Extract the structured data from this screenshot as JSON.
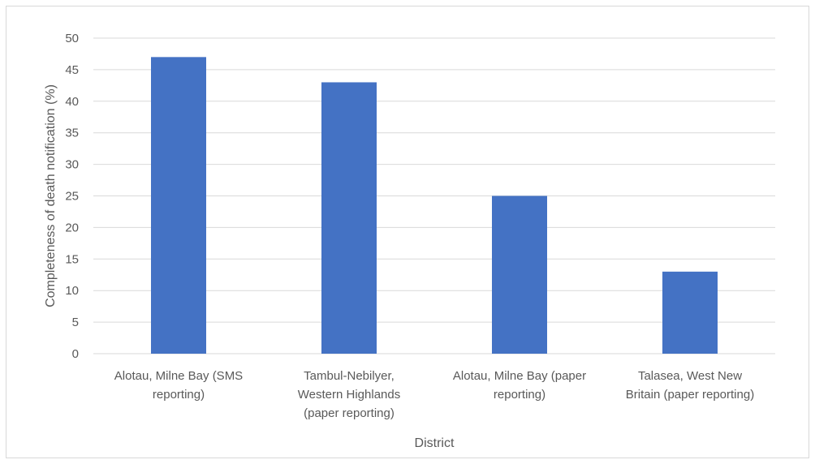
{
  "chart_data": {
    "type": "bar",
    "title": "",
    "xlabel": "District",
    "ylabel": "Completeness of death notification (%)",
    "ylim": [
      0,
      50
    ],
    "ytick_step": 5,
    "grid": true,
    "legend": "none",
    "bar_color": "#4472C4",
    "categories": [
      [
        "Alotau, Milne Bay (SMS",
        "reporting)"
      ],
      [
        "Tambul-Nebilyer,",
        "Western Highlands",
        "(paper reporting)"
      ],
      [
        "Alotau, Milne Bay (paper",
        "reporting)"
      ],
      [
        "Talasea, West New",
        "Britain (paper reporting)"
      ]
    ],
    "values": [
      47,
      43,
      25,
      13
    ]
  }
}
